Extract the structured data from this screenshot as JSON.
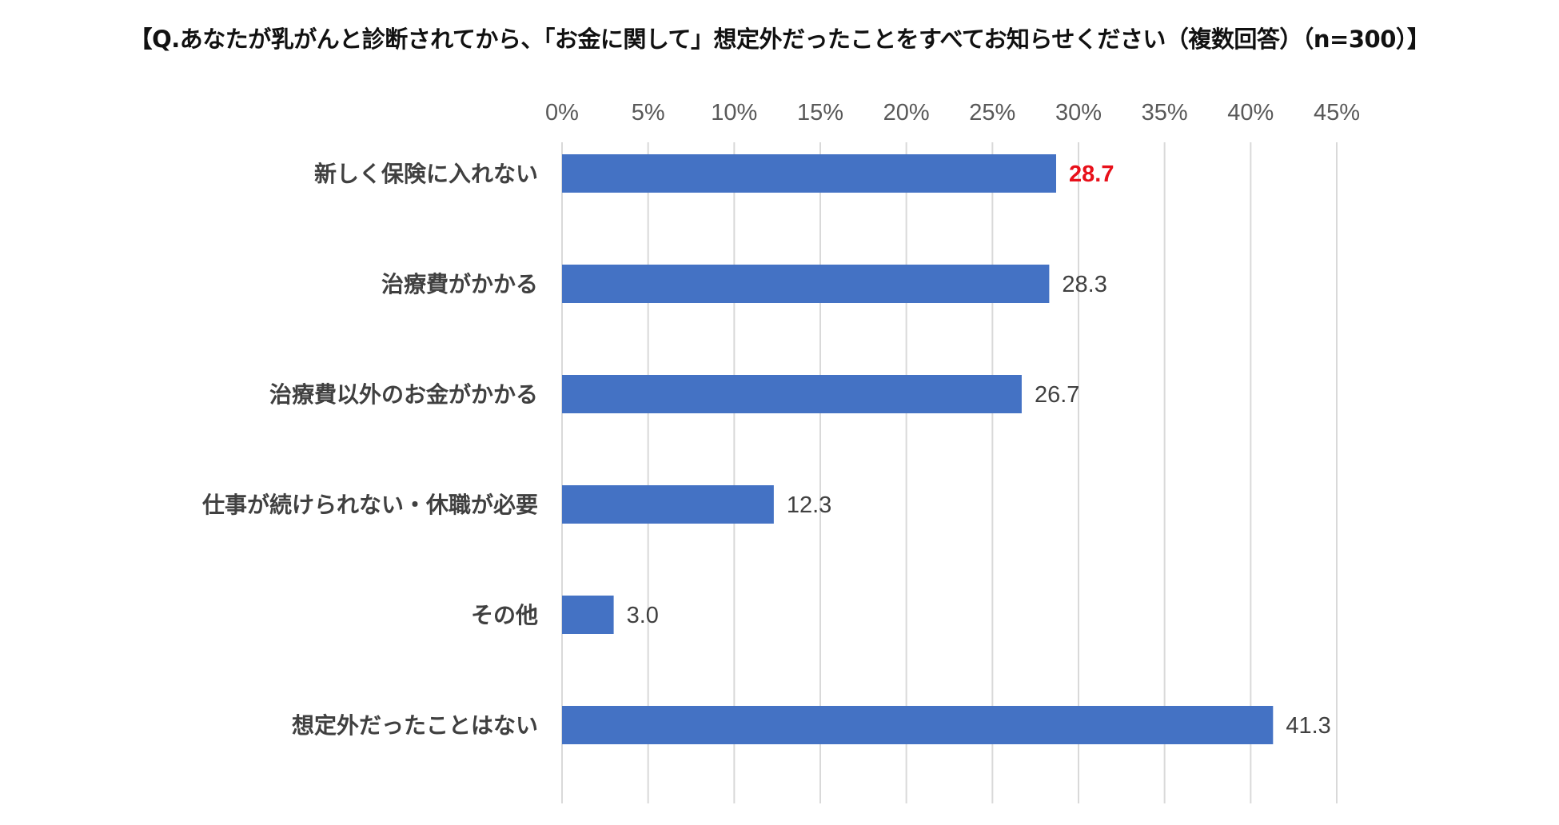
{
  "chart_data": {
    "type": "bar",
    "orientation": "horizontal",
    "title": "【Q.あなたが乳がんと診断されてから、「お金に関して」想定外だったことをすべてお知らせください（複数回答）（n=300）】",
    "categories": [
      "新しく保険に入れない",
      "治療費がかかる",
      "治療費以外のお金がかかる",
      "仕事が続けられない・休職が必要",
      "その他",
      "想定外だったことはない"
    ],
    "values": [
      28.7,
      28.3,
      26.7,
      12.3,
      3.0,
      41.3
    ],
    "value_labels": [
      "28.7",
      "28.3",
      "26.7",
      "12.3",
      "3.0",
      "41.3"
    ],
    "highlight_index": 0,
    "xlim": [
      0,
      45
    ],
    "x_ticks": [
      0,
      5,
      10,
      15,
      20,
      25,
      30,
      35,
      40,
      45
    ],
    "x_tick_labels": [
      "0%",
      "5%",
      "10%",
      "15%",
      "20%",
      "25%",
      "30%",
      "35%",
      "40%",
      "45%"
    ],
    "xaxis_position": "top",
    "grid": true,
    "legend": "none",
    "colors": {
      "bar": "#4472c4",
      "grid": "#d9d9d9",
      "highlight_label": "#e8101a",
      "label": "#404040",
      "tick": "#595959"
    }
  }
}
